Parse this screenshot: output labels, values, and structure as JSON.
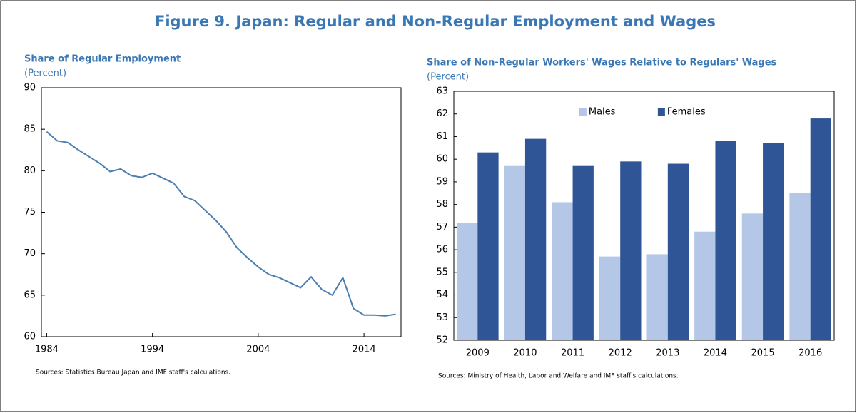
{
  "title": "Figure 9. Japan: Regular and Non-Regular Employment and Wages",
  "chart_data": [
    {
      "type": "line",
      "title": "Share of Regular Employment",
      "subtitle": "(Percent)",
      "source": "Sources: Statistics Bureau Japan and IMF staff's calculations.",
      "x": [
        1984,
        1985,
        1986,
        1987,
        1988,
        1989,
        1990,
        1991,
        1992,
        1993,
        1994,
        1995,
        1996,
        1997,
        1998,
        1999,
        2000,
        2001,
        2002,
        2003,
        2004,
        2005,
        2006,
        2007,
        2008,
        2009,
        2010,
        2011,
        2012,
        2013,
        2014,
        2015,
        2016,
        2017
      ],
      "series": [
        {
          "name": "Share of Regular Employment",
          "color": "#4a7fb0",
          "values": [
            84.7,
            83.6,
            83.4,
            82.5,
            81.7,
            80.9,
            79.9,
            80.2,
            79.4,
            79.2,
            79.7,
            79.1,
            78.5,
            76.9,
            76.4,
            75.2,
            74.0,
            72.6,
            70.7,
            69.5,
            68.4,
            67.5,
            67.1,
            66.5,
            65.9,
            67.2,
            65.7,
            65.0,
            67.1,
            63.4,
            62.6,
            62.6,
            62.5,
            62.7
          ]
        }
      ],
      "xlim": [
        1983.5,
        2017.5
      ],
      "xticks": [
        1984,
        1994,
        2004,
        2014
      ],
      "ylim": [
        60,
        90
      ],
      "yticks": [
        60,
        65,
        70,
        75,
        80,
        85,
        90
      ],
      "grid": false
    },
    {
      "type": "bar",
      "title": "Share of Non-Regular Workers' Wages Relative to Regulars' Wages",
      "subtitle": "(Percent)",
      "source": "Sources: Ministry of Health, Labor and Welfare and IMF staff's calculations.",
      "categories": [
        "2009",
        "2010",
        "2011",
        "2012",
        "2013",
        "2014",
        "2015",
        "2016"
      ],
      "series": [
        {
          "name": "Males",
          "color": "#b4c7e7",
          "values": [
            57.2,
            59.7,
            58.1,
            55.7,
            55.8,
            56.8,
            57.6,
            58.5
          ]
        },
        {
          "name": "Females",
          "color": "#2f5597",
          "values": [
            60.3,
            60.9,
            59.7,
            59.9,
            59.8,
            60.8,
            60.7,
            61.8
          ]
        }
      ],
      "ylim": [
        52,
        63
      ],
      "yticks": [
        52,
        53,
        54,
        55,
        56,
        57,
        58,
        59,
        60,
        61,
        62,
        63
      ],
      "grid": false,
      "legend": "top"
    }
  ]
}
